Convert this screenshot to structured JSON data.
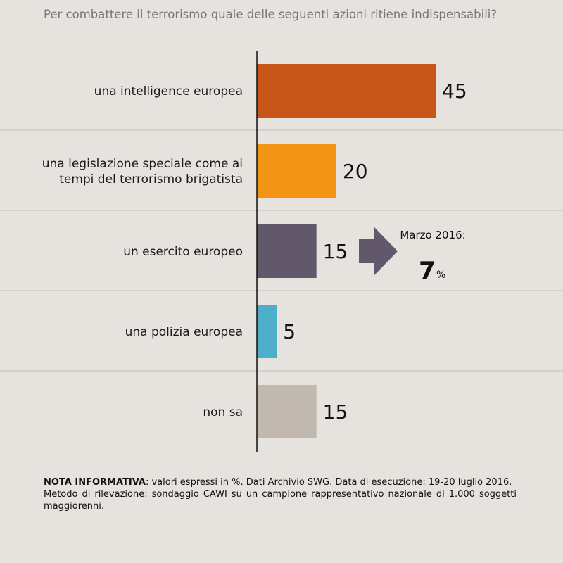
{
  "chart_data": {
    "type": "bar",
    "orientation": "horizontal",
    "title": "Per combattere il terrorismo quale delle seguenti azioni ritiene indispensabili?",
    "categories": [
      [
        "una intelligence europea"
      ],
      [
        "una legislazione speciale come ai",
        "tempi del terrorismo brigatista"
      ],
      [
        "un esercito europeo"
      ],
      [
        "una polizia europea"
      ],
      [
        "non sa"
      ]
    ],
    "values": [
      45,
      20,
      15,
      5,
      15
    ],
    "colors": [
      "#c85619",
      "#f39416",
      "#62586b",
      "#4eafcb",
      "#c1b8b0"
    ],
    "xlim": [
      0,
      50
    ],
    "comparison": {
      "category_index": 2,
      "label": "Marzo 2016:",
      "value": "7",
      "unit": "%",
      "arrow_color": "#62586b"
    }
  },
  "note": {
    "heading": "NOTA INFORMATIVA",
    "line1": ": valori espressi in %. Dati Archivio SWG. Data di esecuzione: 19-20 luglio 2016.",
    "line2": "Metodo di rilevazione: sondaggio CAWI su un campione rappresentativo nazionale di 1.000 soggetti maggiorenni."
  }
}
